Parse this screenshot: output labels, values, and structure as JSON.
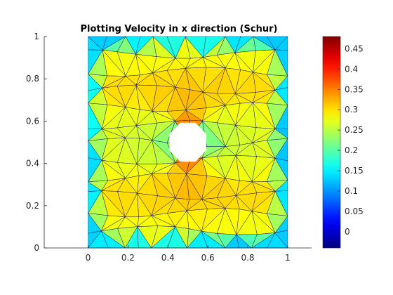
{
  "chart_data": {
    "type": "heatmap",
    "title": "Plotting Velocity in x direction (Schur)",
    "xlabel": "",
    "ylabel": "",
    "xlim": [
      -0.22,
      1.12
    ],
    "ylim": [
      0,
      1
    ],
    "x_ticks": [
      0,
      0.2,
      0.4,
      0.6,
      0.8,
      1
    ],
    "x_tick_labels": [
      "0",
      "0.2",
      "0.4",
      "0.6",
      "0.8",
      "1"
    ],
    "y_ticks": [
      0,
      0.2,
      0.4,
      0.6,
      0.8,
      1
    ],
    "y_tick_labels": [
      "0",
      "0.2",
      "0.4",
      "0.6",
      "0.8",
      "1"
    ],
    "domain": {
      "x": [
        0,
        1
      ],
      "y": [
        0,
        1
      ]
    },
    "obstacle": {
      "shape": "octagon",
      "center": [
        0.5,
        0.5
      ],
      "radius": 0.1
    },
    "mesh": "triangular",
    "colormap": "jet",
    "color_range": [
      -0.04,
      0.48
    ],
    "colorbar": {
      "ticks": [
        0,
        0.05,
        0.1,
        0.15,
        0.2,
        0.25,
        0.3,
        0.35,
        0.4,
        0.45
      ],
      "tick_labels": [
        "0",
        "0.05",
        "0.1",
        "0.15",
        "0.2",
        "0.25",
        "0.3",
        "0.35",
        "0.4",
        "0.45"
      ]
    },
    "grid": false,
    "legend": "none"
  }
}
